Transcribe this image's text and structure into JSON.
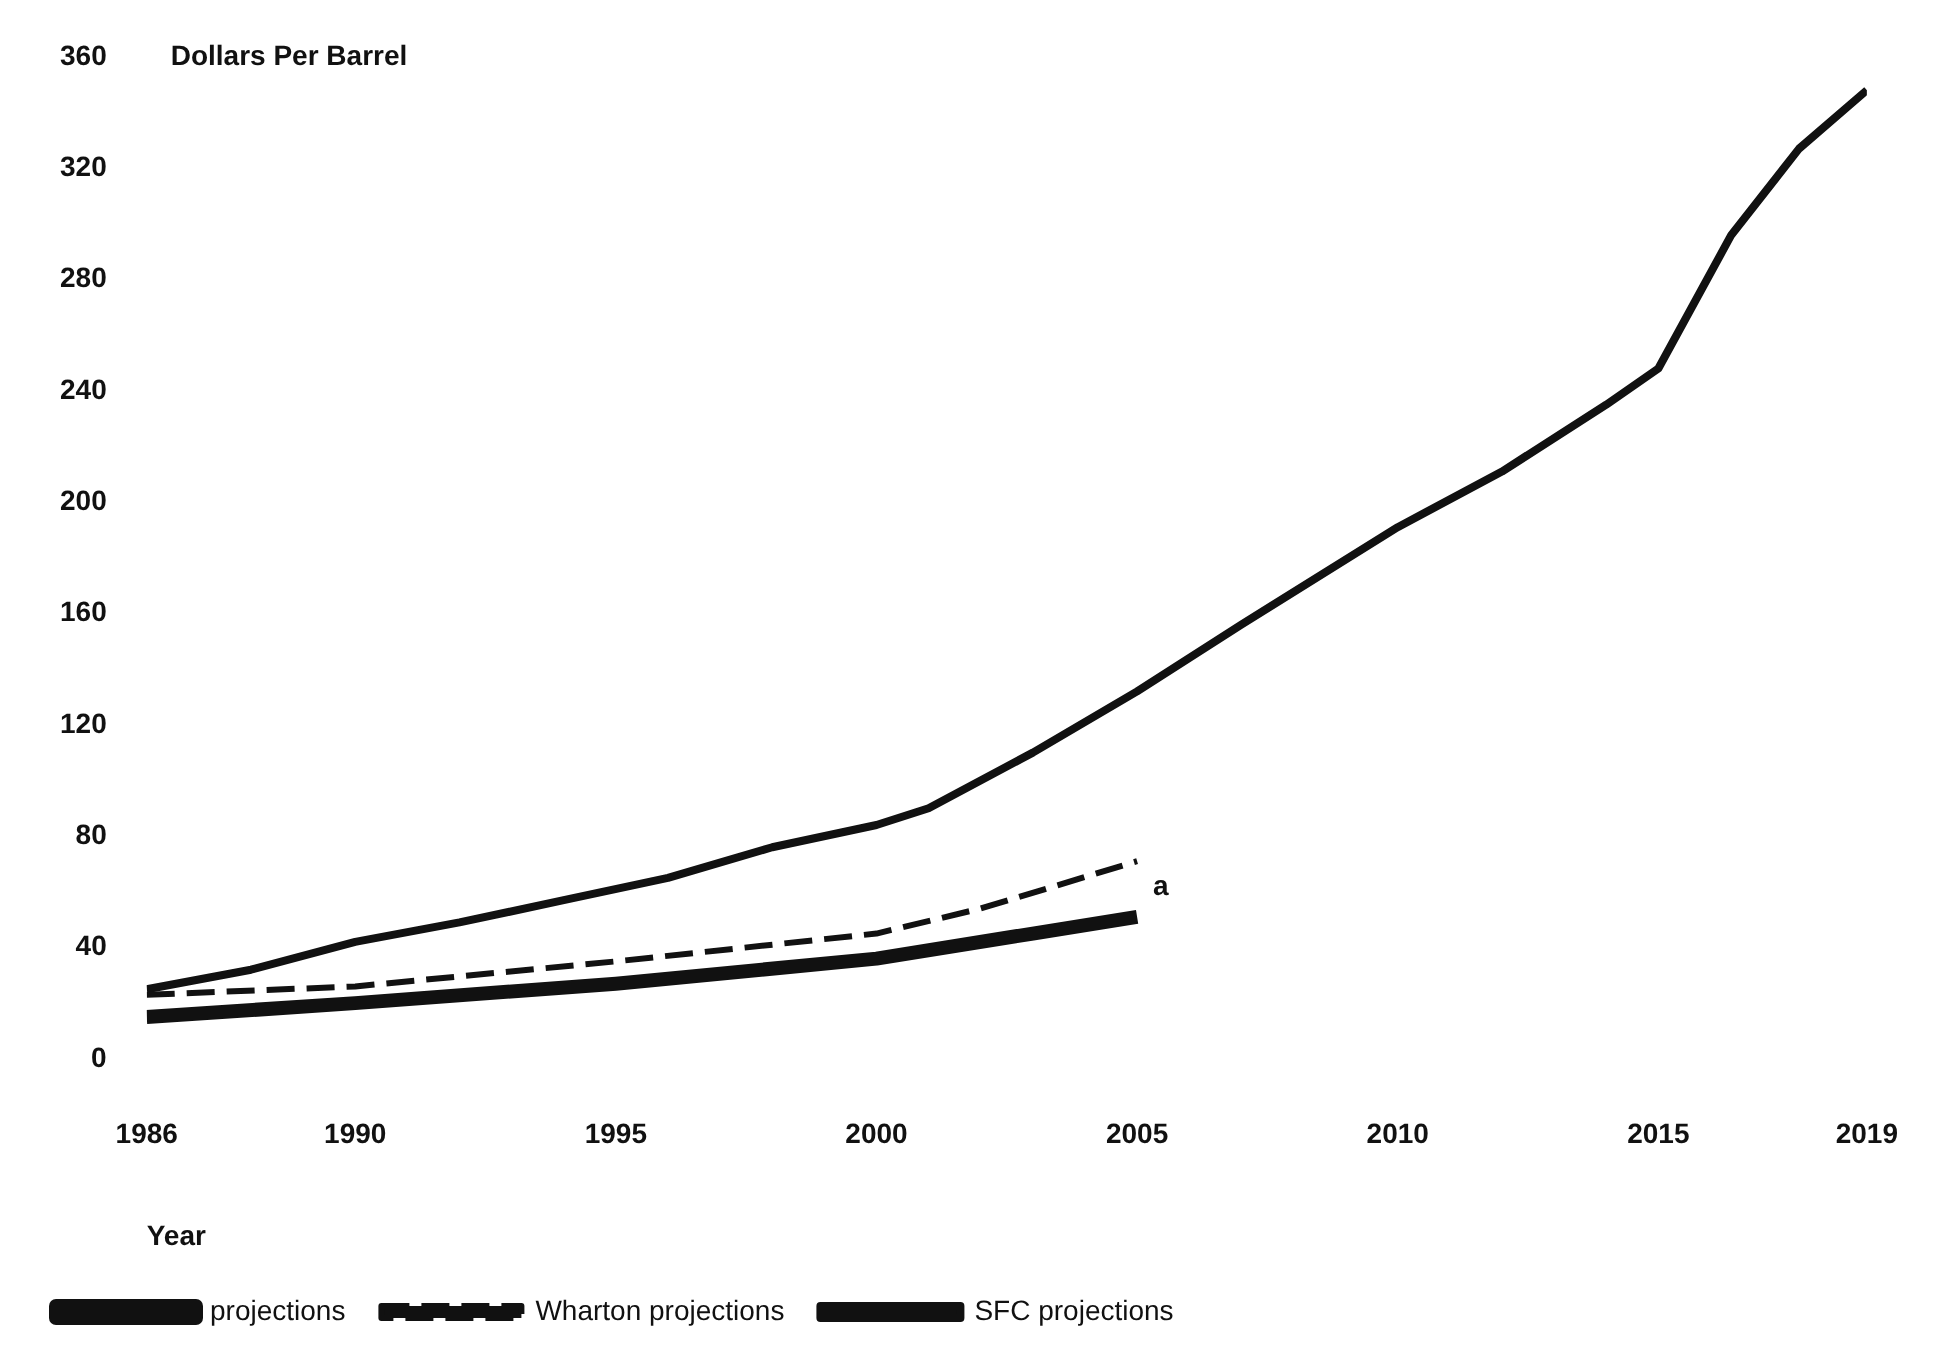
{
  "chart_data": {
    "type": "line",
    "ylabel": "Dollars Per Barrel",
    "xlabel": "Year",
    "xlim": [
      1986,
      2019
    ],
    "xticks": [
      1986,
      1990,
      1995,
      2000,
      2005,
      2010,
      2015,
      2019
    ],
    "ylim": [
      0,
      360
    ],
    "yticks": [
      0,
      40,
      80,
      120,
      160,
      200,
      240,
      280,
      320,
      360
    ],
    "grid": false,
    "legend": "bottom",
    "marker": "none",
    "annotations": [
      {
        "text": "a",
        "x": 2005,
        "y": 51
      }
    ],
    "series": [
      {
        "name": "projections",
        "color": "#111111",
        "line_style": "solid",
        "x": [
          1986,
          1990,
          1995,
          2000,
          2003,
          2005
        ],
        "values": [
          15,
          20,
          27,
          36,
          45,
          51
        ]
      },
      {
        "name": "Wharton projections",
        "color": "#111111",
        "line_style": "dashed",
        "x": [
          1986,
          1990,
          1995,
          2000,
          2002,
          2005
        ],
        "values": [
          23,
          26,
          35,
          45,
          54,
          71
        ]
      },
      {
        "name": "SFC projections",
        "color": "#111111",
        "line_style": "solid",
        "x": [
          1986,
          1988,
          1990,
          1992,
          1994,
          1996,
          1998,
          2000,
          2001,
          2003,
          2005,
          2007,
          2010,
          2012,
          2014,
          2015,
          2016.4,
          2017.7,
          2019
        ],
        "values": [
          25,
          32,
          42,
          49,
          57,
          65,
          76,
          84,
          90,
          110,
          132,
          156,
          191,
          211,
          235,
          248,
          296,
          327,
          348
        ]
      }
    ]
  }
}
